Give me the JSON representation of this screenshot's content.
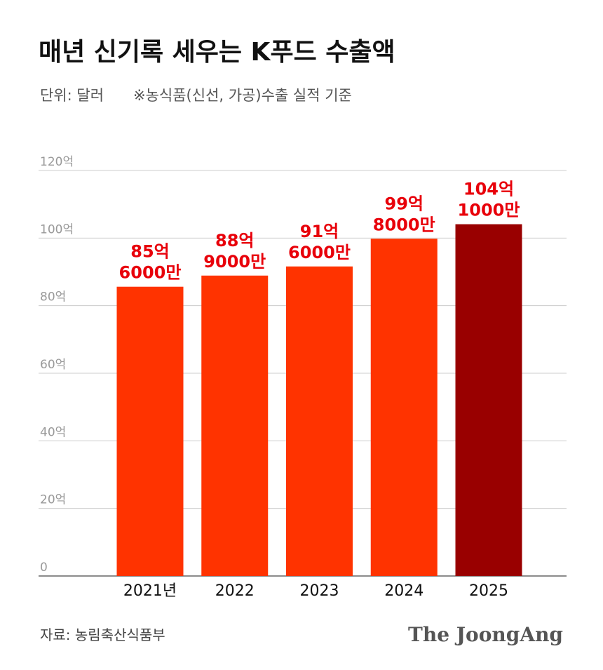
{
  "chart_data": {
    "type": "bar",
    "title": "매년 신기록 세우는 K푸드 수출액",
    "unit_note": "단위: 달러",
    "note": "※농식품(신선, 가공)수출 실적 기준",
    "categories": [
      "2021년",
      "2022",
      "2023",
      "2024",
      "2025"
    ],
    "values": [
      85.6,
      88.9,
      91.6,
      99.8,
      104.1
    ],
    "value_labels": [
      [
        "85억",
        "6000만"
      ],
      [
        "88억",
        "9000만"
      ],
      [
        "91억",
        "6000만"
      ],
      [
        "99억",
        "8000만"
      ],
      [
        "104억",
        "1000만"
      ]
    ],
    "colors": [
      "#ff3300",
      "#ff3300",
      "#ff3300",
      "#ff3300",
      "#990000"
    ],
    "ylim": [
      0,
      120
    ],
    "yticks": [
      0,
      {
        "value": 20,
        "label": "20억"
      },
      {
        "value": 40,
        "label": "40억"
      },
      {
        "value": 60,
        "label": "60억"
      },
      {
        "value": 80,
        "label": "80억"
      },
      {
        "value": 100,
        "label": "100억"
      },
      {
        "value": 120,
        "label": "120억"
      }
    ],
    "grid": true,
    "source": "자료: 농림축산식품부",
    "logo": "The JoongAng"
  }
}
